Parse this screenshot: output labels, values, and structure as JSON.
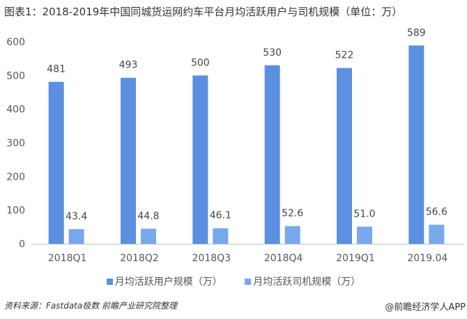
{
  "title": "图表1：2018-2019年中国同城货运网约车平台月均活跃用户与司机规模（单位：万）",
  "chart_data": {
    "type": "bar",
    "title": "图表1：2018-2019年中国同城货运网约车平台月均活跃用户与司机规模（单位：万）",
    "categories": [
      "2018Q1",
      "2018Q2",
      "2018Q3",
      "2018Q4",
      "2019Q1",
      "2019.04"
    ],
    "series": [
      {
        "name": "月均活跃用户规模（万）",
        "values": [
          481,
          493,
          500,
          530,
          522,
          589
        ],
        "labels": [
          "481",
          "493",
          "500",
          "530",
          "522",
          "589"
        ],
        "color": "#5b8fe0"
      },
      {
        "name": "月均活跃司机规模（万）",
        "values": [
          43.4,
          44.8,
          46.1,
          52.6,
          51.0,
          56.6
        ],
        "labels": [
          "43.4",
          "44.8",
          "46.1",
          "52.6",
          "51.0",
          "56.6"
        ],
        "color": "#76a9ee"
      }
    ],
    "ylim": [
      0,
      600
    ],
    "yticks": [
      "0",
      "100",
      "200",
      "300",
      "400",
      "500",
      "600"
    ],
    "grid": false,
    "legend": "bottom"
  },
  "source": "资料来源：Fastdata极数 前瞻产业研究院整理",
  "credit": "@前瞻经济学人APP",
  "watermark": "前瞻产业研究院"
}
